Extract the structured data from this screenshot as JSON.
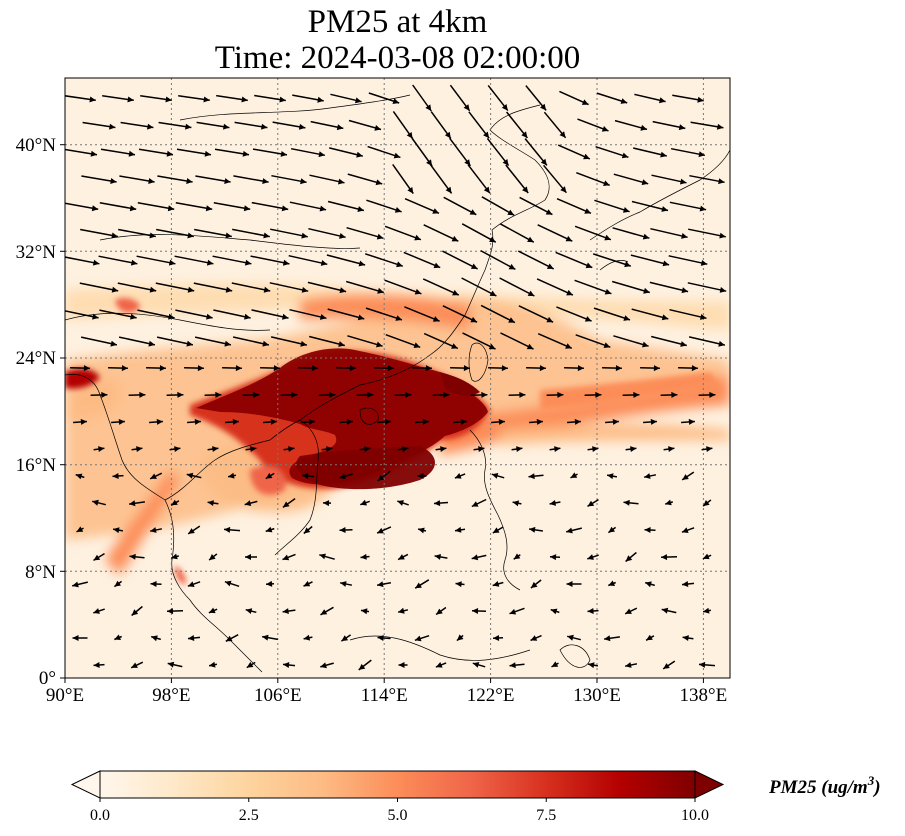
{
  "title": {
    "line1": "PM25 at 4km",
    "line2": "Time: 2024-03-08 02:00:00"
  },
  "map": {
    "projection": "PlateCarree",
    "lon_range": [
      90,
      140
    ],
    "lat_range": [
      0,
      45
    ],
    "x_ticks": [
      "90°E",
      "98°E",
      "106°E",
      "114°E",
      "122°E",
      "130°E",
      "138°E"
    ],
    "y_ticks": [
      "0°",
      "8°N",
      "16°N",
      "24°N",
      "32°N",
      "40°N"
    ],
    "gridlines": "dotted",
    "overlay": "wind vectors",
    "colormap": "OrRd"
  },
  "colorbar": {
    "ticks": [
      "0.0",
      "2.5",
      "5.0",
      "7.5",
      "10.0"
    ],
    "range": [
      0,
      10
    ],
    "extend": "both",
    "label": "PM25 (ug/m",
    "label_superscript": "3",
    "label_close": ")",
    "colors": [
      "#fff7ec",
      "#fee8c8",
      "#fdd49e",
      "#fdbb84",
      "#fc8d59",
      "#ef6548",
      "#d7301f",
      "#b30000",
      "#7f0000"
    ]
  }
}
